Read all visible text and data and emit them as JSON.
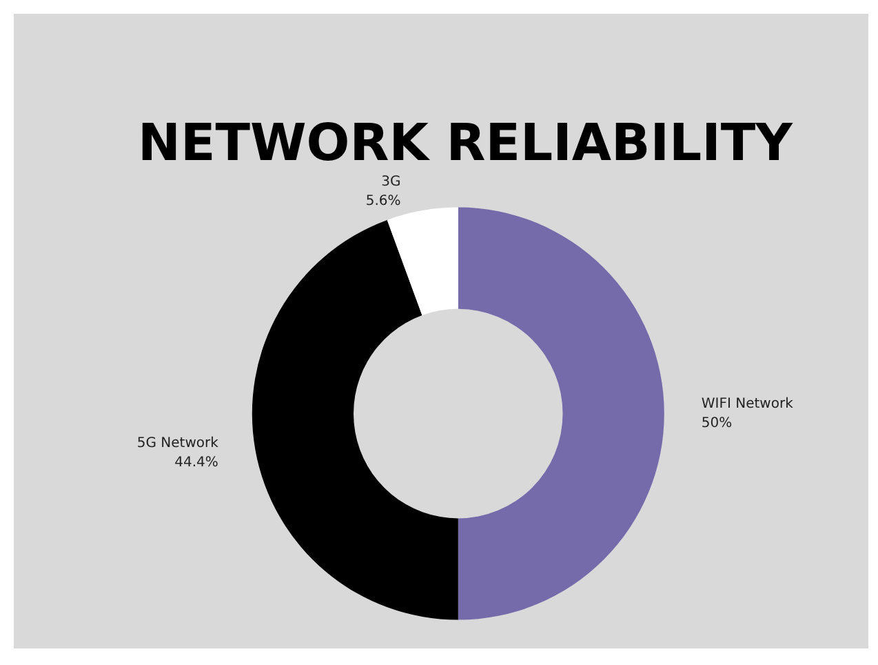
{
  "chart_data": {
    "type": "donut",
    "title": "NETWORK RELIABILITY",
    "categories": [
      "WIFI Network",
      "5G Network",
      "3G"
    ],
    "values": [
      50,
      44.4,
      5.6
    ],
    "value_labels": [
      "50%",
      "44.4%",
      "5.6%"
    ],
    "colors": [
      "#756bab",
      "#000000",
      "#ffffff"
    ],
    "legend": false
  }
}
